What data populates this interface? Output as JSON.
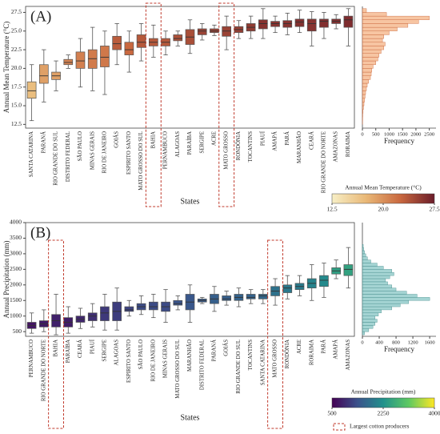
{
  "chart_data": [
    {
      "type": "box",
      "panel_label": "(A)",
      "ylabel": "Annual Mean Temperature (°C)",
      "xlabel": "States",
      "categories": [
        "SANTA CATARINA",
        "PARANÁ",
        "RIO GRANDE DO SUL",
        "DISTRITO FEDERAL",
        "SÃO PAULO",
        "MINAS GERAIS",
        "RIO DE JANEIRO",
        "GOIÁS",
        "ESPIRITO SANTO",
        "MATO GROSSO DO SUL",
        "BAHIA",
        "PERNAMBUCO",
        "ALAGOAS",
        "PARAÍBA",
        "SERGIPE",
        "ACRE",
        "MATO GROSSO",
        "RONDÔNIA",
        "TOCANTINS",
        "PIAUÍ",
        "AMAPÁ",
        "PARÁ",
        "MARANHÃO",
        "CEARÁ",
        "RIO GRANDE DO NORTE",
        "AMAZONAS",
        "RORAIMA"
      ],
      "median": [
        17,
        19,
        19,
        20.8,
        21,
        21.3,
        21.5,
        23.3,
        22.5,
        23.5,
        23.5,
        23.5,
        24,
        24.2,
        25,
        25,
        25,
        25.2,
        25.5,
        26,
        26,
        26,
        26.2,
        26,
        26.3,
        26.3,
        26.5
      ],
      "q1": [
        16,
        18,
        18.5,
        20.5,
        20,
        20,
        20.2,
        22.5,
        21.8,
        22.8,
        23,
        23,
        23.7,
        23.2,
        24.5,
        24.8,
        24.3,
        24.8,
        25,
        25.3,
        25.6,
        25.5,
        25.6,
        25,
        25.5,
        26,
        25.5
      ],
      "q3": [
        18.2,
        20.5,
        19.5,
        21.2,
        22.2,
        22.5,
        23,
        24.3,
        23.5,
        24.5,
        24,
        24,
        24.5,
        25.2,
        25.3,
        25.3,
        25.6,
        25.6,
        26,
        26.5,
        26.3,
        26.4,
        26.6,
        26.6,
        26.6,
        26.6,
        27
      ],
      "whisker_low": [
        13,
        15.5,
        17,
        20,
        17.5,
        17,
        16.5,
        20.5,
        19.5,
        21,
        21.5,
        21.8,
        23,
        22,
        23.8,
        24.4,
        22.5,
        24,
        24,
        24,
        24.8,
        24.5,
        24.8,
        23,
        24,
        25.3,
        23
      ],
      "whisker_high": [
        20.5,
        22.5,
        21,
        21.8,
        24,
        25.5,
        25,
        26,
        25,
        26,
        25.8,
        25,
        25,
        26.5,
        26,
        25.8,
        27,
        26.4,
        27,
        28,
        27,
        27.4,
        27.8,
        27.6,
        27.5,
        27.2,
        28
      ],
      "highlight_indices": [
        10,
        16
      ],
      "ylim": [
        12,
        28.3
      ],
      "yticks": [
        12.5,
        {
          "value": 15,
          "label": "15.0"
        },
        17.5,
        {
          "value": 20,
          "label": "20.0"
        },
        22.5,
        {
          "value": 25,
          "label": "25.0"
        },
        27.5
      ],
      "histogram": {
        "xlabel": "Frequency",
        "color": "#f4b183",
        "edge": "#c9673e",
        "bins": [
          12.5,
          13,
          13.5,
          14,
          14.5,
          15,
          15.5,
          16,
          16.5,
          17,
          17.5,
          18,
          18.5,
          19,
          19.5,
          20,
          20.5,
          21,
          21.5,
          22,
          22.5,
          23,
          23.5,
          24,
          24.5,
          25,
          25.5,
          26,
          26.5,
          27,
          27.5,
          28
        ],
        "counts": [
          5,
          10,
          15,
          25,
          40,
          60,
          80,
          100,
          120,
          150,
          180,
          230,
          300,
          330,
          350,
          400,
          500,
          580,
          620,
          700,
          800,
          850,
          750,
          800,
          1000,
          1300,
          1700,
          2100,
          2500,
          900,
          150
        ],
        "xlim": [
          0,
          2750
        ],
        "xticks": [
          0,
          500,
          1000,
          1500,
          2000,
          2500
        ]
      },
      "colorbar": {
        "label": "Annual Mean Temperature (°C)",
        "lim": [
          12.5,
          27.5
        ],
        "colors": [
          "#f7efc6",
          "#e9b877",
          "#c9683f",
          "#6b1d2a"
        ],
        "ticks": [
          12.5,
          {
            "value": 20,
            "label": "20.0"
          },
          27.5
        ]
      }
    },
    {
      "type": "box",
      "panel_label": "(B)",
      "ylabel": "Annual Precipitation (mm)",
      "xlabel": "States",
      "categories": [
        "PERNAMBUCO",
        "RIO GRANDE DO NORTE",
        "BAHIA",
        "PARAÍBA",
        "CEARÁ",
        "PIAUÍ",
        "SERGIPE",
        "ALAGOAS",
        "ESPIRITO SANTO",
        "SÃO PAULO",
        "RIO DE JANEIRO",
        "MINAS GERAIS",
        "MATO GROSSO DO SUL",
        "MARANHÃO",
        "DISTRITO FEDERAL",
        "PARANÁ",
        "GOIÁS",
        "RIO GRANDE DO SUL",
        "TOCANTINS",
        "SANTA CATARINA",
        "MATO GROSSO",
        "RONDÔNIA",
        "ACRE",
        "RORAIMA",
        "PARÁ",
        "AMAPÁ",
        "AMAZONAS"
      ],
      "median": [
        700,
        750,
        850,
        800,
        900,
        1000,
        1100,
        1150,
        1200,
        1300,
        1300,
        1300,
        1400,
        1450,
        1500,
        1550,
        1550,
        1600,
        1600,
        1650,
        1800,
        1900,
        1950,
        2050,
        2150,
        2450,
        2500
      ],
      "q1": [
        600,
        650,
        650,
        650,
        800,
        850,
        850,
        850,
        1150,
        1200,
        1200,
        1150,
        1350,
        1200,
        1450,
        1400,
        1500,
        1500,
        1550,
        1550,
        1650,
        1750,
        1850,
        1900,
        1950,
        2350,
        2300
      ],
      "q3": [
        800,
        850,
        1050,
        950,
        1000,
        1100,
        1300,
        1450,
        1300,
        1400,
        1450,
        1450,
        1500,
        1700,
        1550,
        1700,
        1650,
        1700,
        1700,
        1700,
        1950,
        2000,
        2050,
        2200,
        2300,
        2550,
        2650
      ],
      "whisker_low": [
        450,
        500,
        400,
        450,
        600,
        650,
        550,
        550,
        1000,
        1050,
        950,
        800,
        1200,
        800,
        1400,
        1150,
        1350,
        1300,
        1400,
        1400,
        1350,
        1550,
        1650,
        1500,
        1600,
        2200,
        1900
      ],
      "whisker_high": [
        1100,
        1200,
        1700,
        1300,
        1250,
        1400,
        1700,
        1900,
        1500,
        1650,
        1700,
        1850,
        1650,
        2000,
        1600,
        1950,
        1800,
        1900,
        1850,
        1850,
        2200,
        2300,
        2300,
        2650,
        2700,
        2800,
        3200
      ],
      "highlight_indices": [
        2,
        20
      ],
      "ylim": [
        350,
        4000
      ],
      "yticks": [
        500,
        1000,
        1500,
        2000,
        2500,
        3000,
        3500,
        4000
      ],
      "histogram": {
        "xlabel": "Frequency",
        "color": "#86c5c4",
        "edge": "#4b8f8e",
        "bins": [
          400,
          500,
          600,
          700,
          800,
          900,
          1000,
          1100,
          1200,
          1300,
          1400,
          1500,
          1600,
          1700,
          1800,
          1900,
          2000,
          2100,
          2200,
          2300,
          2400,
          2500,
          2600,
          2700,
          2800,
          2900,
          3000,
          3100,
          3200,
          3300
        ],
        "counts": [
          50,
          150,
          250,
          300,
          350,
          300,
          380,
          450,
          700,
          900,
          1100,
          1600,
          1300,
          1050,
          800,
          700,
          600,
          550,
          650,
          750,
          700,
          500,
          350,
          200,
          120,
          80,
          50,
          30,
          20
        ],
        "xlim": [
          0,
          1750
        ],
        "xticks": [
          0,
          400,
          800,
          1200,
          1600
        ]
      },
      "colorbar": {
        "label": "Annual Precipitation (mm)",
        "lim": [
          500,
          4000
        ],
        "colors": [
          "#440154",
          "#3b528b",
          "#21918c",
          "#5ec962",
          "#fde725"
        ],
        "ticks": [
          500,
          2250,
          4000
        ]
      },
      "legend": {
        "label": "Largest cotton producers"
      }
    }
  ]
}
